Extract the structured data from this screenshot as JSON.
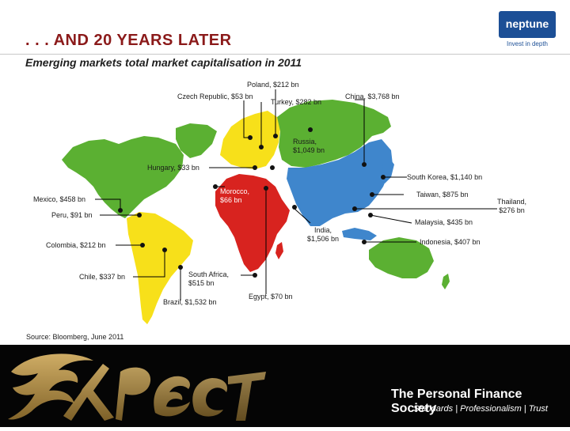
{
  "header": {
    "title": ". . . AND 20 YEARS LATER",
    "subtitle": "Emerging markets total market capitalisation in 2011"
  },
  "logo": {
    "name": "neptune",
    "tagline": "Invest in depth"
  },
  "labels": {
    "poland": "Poland, $212 bn",
    "czech": "Czech Republic, $53 bn",
    "turkey": "Turkey, $282 bn",
    "china": "China, $3,768 bn",
    "russia_name": "Russia,",
    "russia_value": "$1,049 bn",
    "hungary": "Hungary, $33 bn",
    "south_korea": "South Korea, $1,140 bn",
    "morocco_name": "Morocco,",
    "morocco_value": "$66 bn",
    "taiwan": "Taiwan, $875 bn",
    "thailand_name": "Thailand,",
    "thailand_value": "$276 bn",
    "mexico": "Mexico, $458 bn",
    "peru": "Peru, $91 bn",
    "malaysia": "Malaysia, $435 bn",
    "india_name": "India,",
    "india_value": "$1,506 bn",
    "colombia": "Colombia, $212 bn",
    "indonesia": "Indonesia, $407 bn",
    "chile": "Chile, $337 bn",
    "south_africa_name": "South Africa,",
    "south_africa_value": "$515 bn",
    "egypt": "Egypt, $70 bn",
    "brazil": "Brazil, $1,532 bn"
  },
  "source": "Source: Bloomberg, June 2011",
  "footer": {
    "society": "The Personal Finance Society",
    "tagline": "Standards | Professionalism | Trust"
  },
  "colors": {
    "title": "#8b1a1a",
    "americas_north": "#5bb032",
    "americas_south": "#f7e01a",
    "europe": "#f7e01a",
    "russia": "#5bb032",
    "africa": "#d8231f",
    "asia": "#3f86cc",
    "oceania": "#5bb032"
  }
}
